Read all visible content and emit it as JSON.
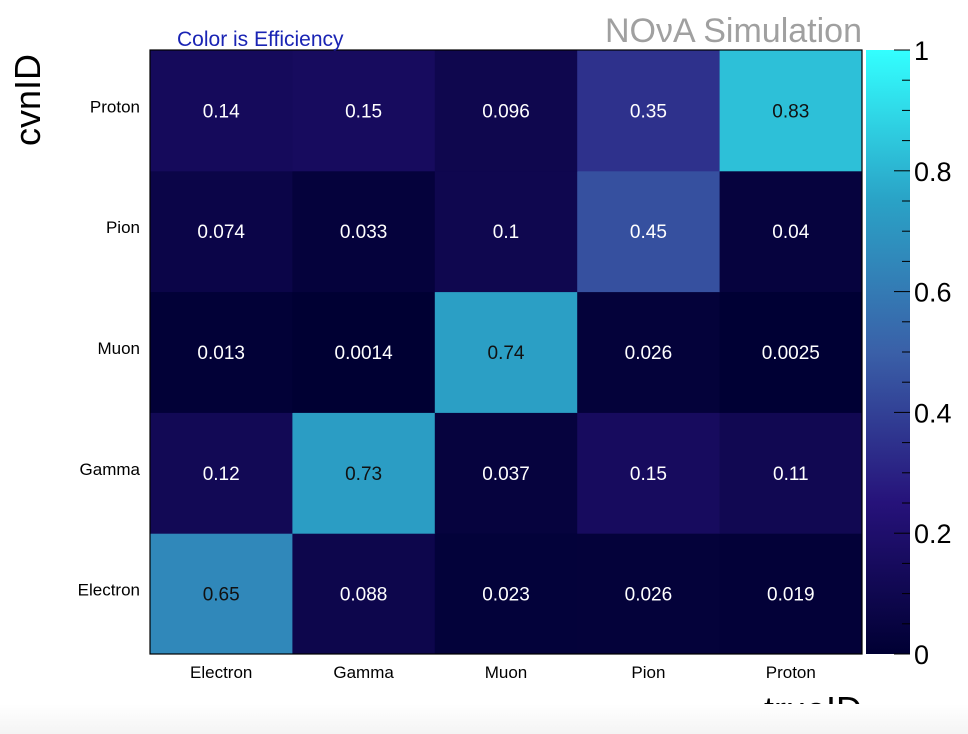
{
  "chart_data": {
    "type": "heatmap",
    "title": "Color is Efficiency",
    "watermark": "NOνA Simulation",
    "xlabel": "trueID",
    "ylabel": "cvnID",
    "x_categories": [
      "Electron",
      "Gamma",
      "Muon",
      "Pion",
      "Proton"
    ],
    "y_categories": [
      "Electron",
      "Gamma",
      "Muon",
      "Pion",
      "Proton"
    ],
    "values": [
      [
        0.65,
        0.088,
        0.023,
        0.026,
        0.019
      ],
      [
        0.12,
        0.73,
        0.037,
        0.15,
        0.11
      ],
      [
        0.013,
        0.0014,
        0.74,
        0.026,
        0.0025
      ],
      [
        0.074,
        0.033,
        0.1,
        0.45,
        0.04
      ],
      [
        0.14,
        0.15,
        0.096,
        0.35,
        0.83
      ]
    ],
    "value_labels": [
      [
        "0.65",
        "0.088",
        "0.023",
        "0.026",
        "0.019"
      ],
      [
        "0.12",
        "0.73",
        "0.037",
        "0.15",
        "0.11"
      ],
      [
        "0.013",
        "0.0014",
        "0.74",
        "0.026",
        "0.0025"
      ],
      [
        "0.074",
        "0.033",
        "0.1",
        "0.45",
        "0.04"
      ],
      [
        "0.14",
        "0.15",
        "0.096",
        "0.35",
        "0.83"
      ]
    ],
    "zlim": [
      0,
      1
    ],
    "colorbar_ticks": [
      0,
      0.2,
      0.4,
      0.6,
      0.8,
      1
    ],
    "colorbar_tick_labels": [
      "0",
      "0.2",
      "0.4",
      "0.6",
      "0.8",
      "1"
    ],
    "colormap": [
      "#000033",
      "#26127a",
      "#3a60a8",
      "#2aa2c6",
      "#33ffff"
    ],
    "colors": {
      "title": "#1a24b4",
      "watermark": "#a0a0a0",
      "light_label": "#ffffff",
      "dark_label": "#111111"
    }
  }
}
